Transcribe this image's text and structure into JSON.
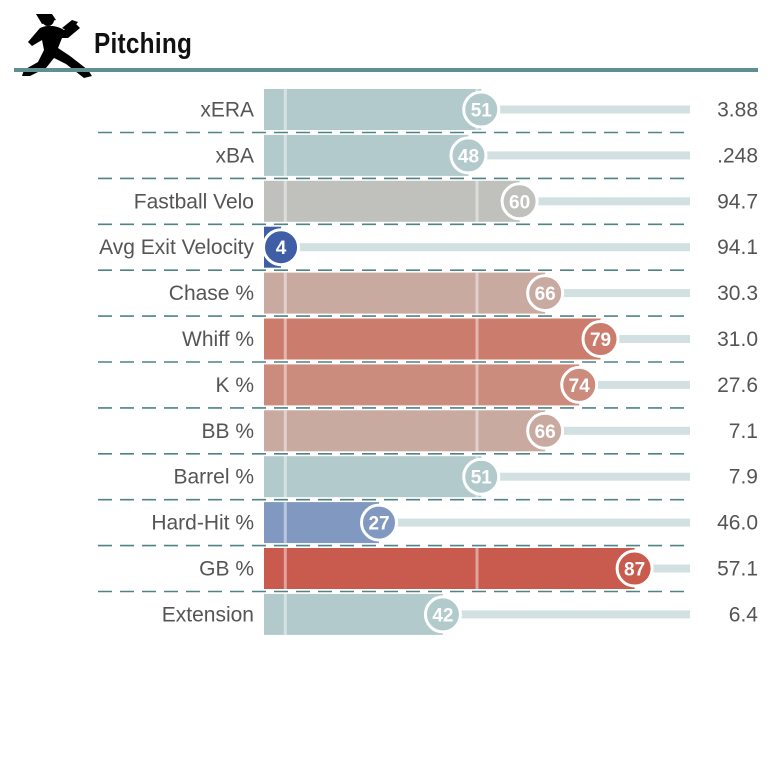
{
  "title": "Pitching",
  "chart_data": {
    "type": "bar",
    "title": "Pitching",
    "xlim": [
      0,
      100
    ],
    "rows": [
      {
        "label": "xERA",
        "percentile": 51,
        "value": "3.88",
        "color": "#b3cacd"
      },
      {
        "label": "xBA",
        "percentile": 48,
        "value": ".248",
        "color": "#b3cacd"
      },
      {
        "label": "Fastball Velo",
        "percentile": 60,
        "value": "94.7",
        "color": "#c0c0bc"
      },
      {
        "label": "Avg Exit Velocity",
        "percentile": 4,
        "value": "94.1",
        "color": "#3f5ea6"
      },
      {
        "label": "Chase %",
        "percentile": 66,
        "value": "30.3",
        "color": "#c8aaa1"
      },
      {
        "label": "Whiff %",
        "percentile": 79,
        "value": "31.0",
        "color": "#cc7c6c"
      },
      {
        "label": "K %",
        "percentile": 74,
        "value": "27.6",
        "color": "#cb8b7d"
      },
      {
        "label": "BB %",
        "percentile": 66,
        "value": "7.1",
        "color": "#c8aaa1"
      },
      {
        "label": "Barrel %",
        "percentile": 51,
        "value": "7.9",
        "color": "#b3cacd"
      },
      {
        "label": "Hard-Hit %",
        "percentile": 27,
        "value": "46.0",
        "color": "#8199c0"
      },
      {
        "label": "GB %",
        "percentile": 87,
        "value": "57.1",
        "color": "#c85a4e"
      },
      {
        "label": "Extension",
        "percentile": 42,
        "value": "6.4",
        "color": "#b3cacd"
      }
    ]
  }
}
